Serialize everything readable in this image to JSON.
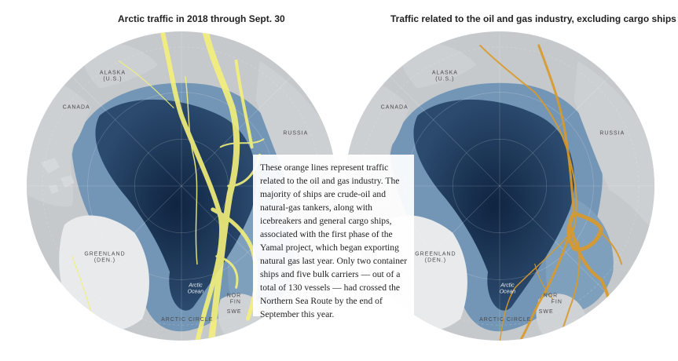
{
  "titles": {
    "left": "Arctic traffic in 2018 through Sept. 30",
    "right": "Traffic related to the oil and gas industry, excluding cargo ships"
  },
  "labels": {
    "alaska_line1": "ALASKA",
    "alaska_line2": "(U.S.)",
    "canada": "CANADA",
    "russia": "RUSSIA",
    "greenland_line1": "GREENLAND",
    "greenland_line2": "(DEN.)",
    "ocean_line1": "Arctic",
    "ocean_line2": "Ocean",
    "arctic_circle": "ARCTIC CIRCLE",
    "nor": "NOR",
    "fin": "FIN",
    "swe": "SWE"
  },
  "callout": {
    "text": "These orange lines represent traffic related to the oil and gas industry. The majority of ships are crude-oil and natural-gas tankers, along with icebreakers and general cargo ships, associated with the first phase of the Yamal project, which began exporting natural gas last year. Only two container ships and five bulk carriers — out of a total of 130 vessels — had crossed the Northern Sea Route by the end of September this year."
  },
  "colors": {
    "all_traffic": "#f4f07a",
    "oil_gas_traffic": "#d99a2b",
    "deep_water": "#173050",
    "shelf_water": "#6f92b3",
    "land": "#c9ccce"
  }
}
